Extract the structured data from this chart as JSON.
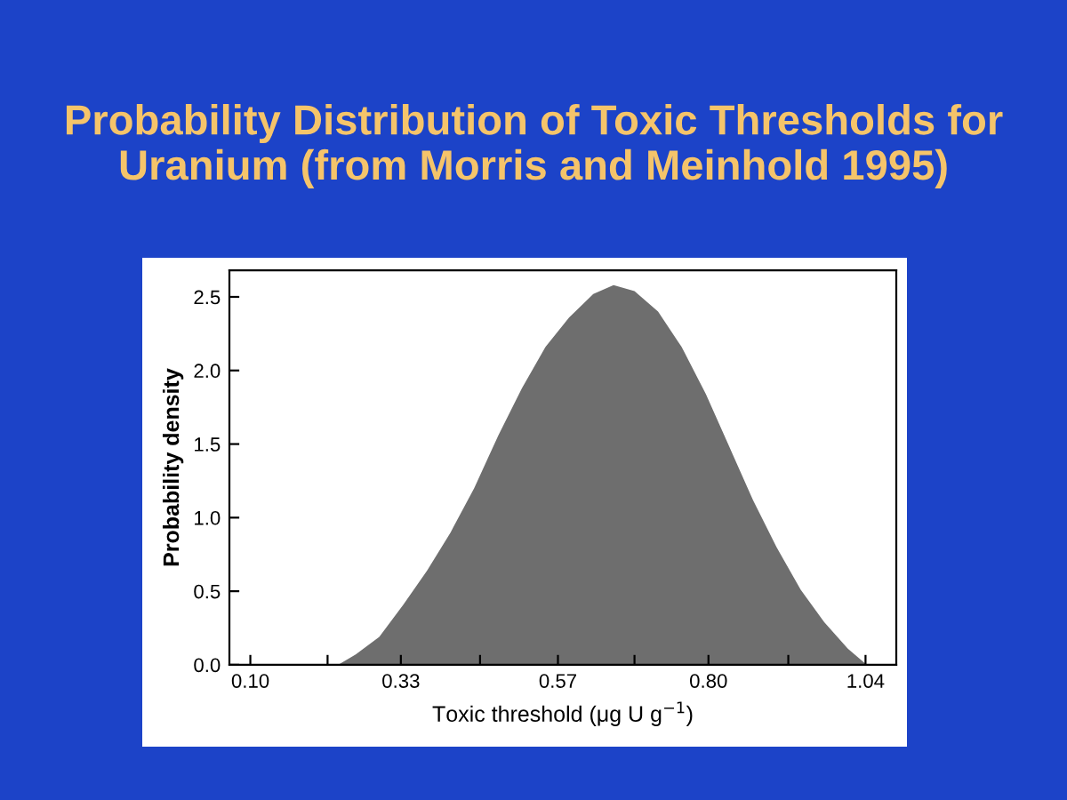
{
  "chart_data": {
    "type": "area",
    "title": "Probability Distribution of Toxic Thresholds for Uranium (from Morris and Meinhold 1995)",
    "xlabel": "Toxic threshold (μg U g$^{−1}$)",
    "ylabel": "Probability density",
    "x": [
      0.234,
      0.261,
      0.297,
      0.334,
      0.37,
      0.406,
      0.442,
      0.479,
      0.515,
      0.551,
      0.587,
      0.624,
      0.655,
      0.687,
      0.723,
      0.759,
      0.796,
      0.832,
      0.868,
      0.904,
      0.941,
      0.977,
      1.013,
      1.042
    ],
    "series": [
      {
        "color": "#6e6e6e",
        "values": [
          0,
          0.07,
          0.19,
          0.41,
          0.64,
          0.9,
          1.2,
          1.56,
          1.88,
          2.16,
          2.36,
          2.52,
          2.58,
          2.54,
          2.4,
          2.16,
          1.84,
          1.48,
          1.12,
          0.8,
          0.51,
          0.29,
          0.11,
          0
        ]
      }
    ],
    "xlim": [
      0.068,
      1.087
    ],
    "xticks": [
      {
        "value": 0.1,
        "label": "0.10"
      },
      {
        "value": 0.218,
        "label": null
      },
      {
        "value": 0.33,
        "label": "0.33"
      },
      {
        "value": 0.451,
        "label": null
      },
      {
        "value": 0.57,
        "label": "0.57"
      },
      {
        "value": 0.687,
        "label": null
      },
      {
        "value": 0.8,
        "label": "0.80"
      },
      {
        "value": 0.922,
        "label": null
      },
      {
        "value": 1.04,
        "label": "1.04"
      }
    ],
    "ylim": [
      0,
      2.68
    ],
    "yticks": [
      {
        "value": 0,
        "label": "0.0"
      },
      {
        "value": 0.5,
        "label": "0.5"
      },
      {
        "value": 1.0,
        "label": "1.0"
      },
      {
        "value": 1.5,
        "label": "1.5"
      },
      {
        "value": 2.0,
        "label": "2.0"
      },
      {
        "value": 2.5,
        "label": "2.5"
      }
    ],
    "grid": false,
    "legend": false
  }
}
